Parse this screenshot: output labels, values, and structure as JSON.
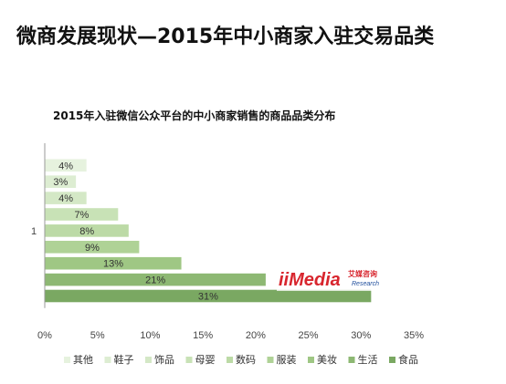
{
  "page": {
    "title": "微商发展现状—2015年中小商家入驻交易品类"
  },
  "watermark": {
    "logo_text": "iiMedia",
    "cn_text": "艾媒咨询",
    "en_text": "Research"
  },
  "chart_data": {
    "type": "bar",
    "orientation": "horizontal",
    "title": "2015年入驻微信公众平台的中小商家销售的商品品类分布",
    "category_axis_label": "1",
    "series": [
      {
        "name": "其他",
        "value": 4,
        "label": "4%",
        "color": "#e6f2de"
      },
      {
        "name": "鞋子",
        "value": 3,
        "label": "3%",
        "color": "#ddedd2"
      },
      {
        "name": "饰品",
        "value": 4,
        "label": "4%",
        "color": "#d4e8c6"
      },
      {
        "name": "母婴",
        "value": 7,
        "label": "7%",
        "color": "#c8e2b6"
      },
      {
        "name": "数码",
        "value": 8,
        "label": "8%",
        "color": "#bcdaa6"
      },
      {
        "name": "服装",
        "value": 9,
        "label": "9%",
        "color": "#afd296"
      },
      {
        "name": "美妆",
        "value": 13,
        "label": "13%",
        "color": "#9fc784"
      },
      {
        "name": "生活",
        "value": 21,
        "label": "21%",
        "color": "#8db873"
      },
      {
        "name": "食品",
        "value": 31,
        "label": "31%",
        "color": "#7aa862"
      }
    ],
    "xlim": [
      0,
      35
    ],
    "xticks": [
      "0%",
      "5%",
      "10%",
      "15%",
      "20%",
      "25%",
      "30%",
      "35%"
    ],
    "legend_position": "bottom",
    "grid": false
  }
}
